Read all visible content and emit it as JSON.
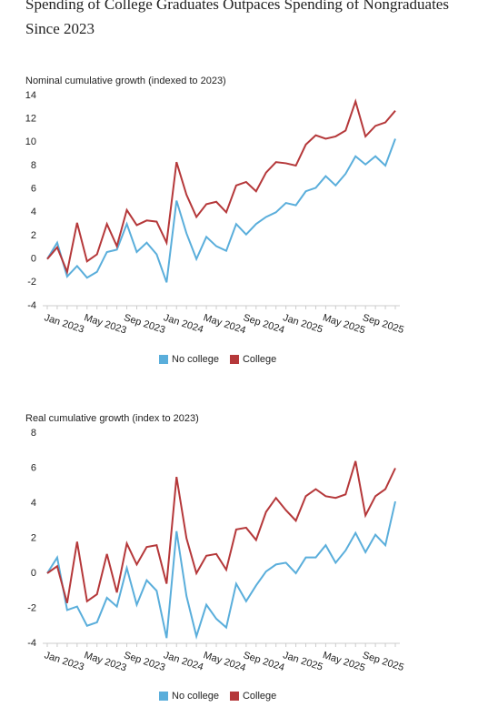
{
  "title": "Spending of College Graduates Outpaces Spending of Nongraduates Since 2023",
  "chart_data": [
    {
      "type": "line",
      "title": "Nominal cumulative growth (indexed to 2023)",
      "categories": [
        "Jan 2023",
        null,
        null,
        null,
        "May 2023",
        null,
        null,
        null,
        "Sep 2023",
        null,
        null,
        null,
        "Jan 2024",
        null,
        null,
        null,
        "May 2024",
        null,
        null,
        null,
        "Sep 2024",
        null,
        null,
        null,
        "Jan 2025",
        null,
        null,
        null,
        "May 2025",
        null,
        null,
        null,
        "Sep 2025",
        null,
        null,
        null
      ],
      "series": [
        {
          "name": "No college",
          "color": "#5aaedb",
          "values": [
            0,
            1.4,
            -1.5,
            -0.6,
            -1.6,
            -1.1,
            0.6,
            0.8,
            3.0,
            0.6,
            1.4,
            0.4,
            -2.0,
            5.0,
            2.2,
            0.0,
            1.9,
            1.1,
            0.7,
            3.0,
            2.1,
            3.0,
            3.6,
            4.0,
            4.8,
            4.6,
            5.8,
            6.1,
            7.1,
            6.3,
            7.3,
            8.8,
            8.1,
            8.8,
            8.0,
            10.3
          ]
        },
        {
          "name": "College",
          "color": "#b5383a",
          "values": [
            0,
            1.0,
            -1.1,
            3.1,
            -0.2,
            0.4,
            3.0,
            1.1,
            4.2,
            2.9,
            3.3,
            3.2,
            1.4,
            8.3,
            5.5,
            3.6,
            4.7,
            4.9,
            4.0,
            6.3,
            6.6,
            5.8,
            7.4,
            8.3,
            8.2,
            8.0,
            9.8,
            10.6,
            10.3,
            10.5,
            11.0,
            13.5,
            10.5,
            11.4,
            11.7,
            12.7
          ]
        }
      ],
      "ylim": [
        -4,
        14
      ],
      "yticks": [
        -4,
        -2,
        0,
        2,
        4,
        6,
        8,
        10,
        12,
        14
      ],
      "legend": "bottom"
    },
    {
      "type": "line",
      "title": "Real cumulative growth (index to 2023)",
      "categories": [
        "Jan 2023",
        null,
        null,
        null,
        "May 2023",
        null,
        null,
        null,
        "Sep 2023",
        null,
        null,
        null,
        "Jan 2024",
        null,
        null,
        null,
        "May 2024",
        null,
        null,
        null,
        "Sep 2024",
        null,
        null,
        null,
        "Jan 2025",
        null,
        null,
        null,
        "May 2025",
        null,
        null,
        null,
        "Sep 2025",
        null,
        null,
        null
      ],
      "series": [
        {
          "name": "No college",
          "color": "#5aaedb",
          "values": [
            0,
            0.9,
            -2.1,
            -1.9,
            -3.0,
            -2.8,
            -1.4,
            -1.9,
            0.3,
            -1.8,
            -0.4,
            -1.0,
            -3.7,
            2.4,
            -1.3,
            -3.6,
            -1.8,
            -2.6,
            -3.1,
            -0.6,
            -1.6,
            -0.7,
            0.1,
            0.5,
            0.6,
            0.0,
            0.9,
            0.9,
            1.6,
            0.6,
            1.3,
            2.3,
            1.2,
            2.2,
            1.6,
            4.1
          ]
        },
        {
          "name": "College",
          "color": "#b5383a",
          "values": [
            0,
            0.4,
            -1.7,
            1.8,
            -1.6,
            -1.2,
            1.1,
            -1.1,
            1.7,
            0.5,
            1.5,
            1.6,
            -0.6,
            5.5,
            2.0,
            0.0,
            1.0,
            1.1,
            0.2,
            2.5,
            2.6,
            1.9,
            3.5,
            4.3,
            3.6,
            3.0,
            4.4,
            4.8,
            4.4,
            4.3,
            4.5,
            6.4,
            3.3,
            4.4,
            4.8,
            6.0
          ]
        }
      ],
      "ylim": [
        -4,
        8
      ],
      "yticks": [
        -4,
        -2,
        0,
        2,
        4,
        6,
        8
      ],
      "legend": "bottom"
    }
  ]
}
